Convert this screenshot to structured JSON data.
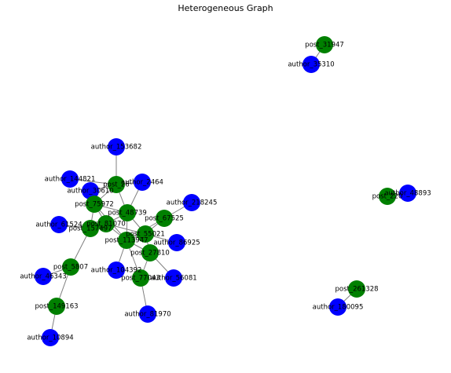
{
  "title": "Heterogeneous Graph",
  "colors": {
    "post": "#008000",
    "author": "#0000ff",
    "edge": "#808080",
    "label": "#000000"
  },
  "nodes": [
    {
      "id": "p31947",
      "label": "post_31947",
      "type": "post"
    },
    {
      "id": "a35310",
      "label": "author_35310",
      "type": "author"
    },
    {
      "id": "p220",
      "label": "post_220",
      "type": "post"
    },
    {
      "id": "a48893",
      "label": "author_48893",
      "type": "author"
    },
    {
      "id": "p261328",
      "label": "post_261328",
      "type": "post"
    },
    {
      "id": "a180095",
      "label": "author_180095",
      "type": "author"
    },
    {
      "id": "a153682",
      "label": "author_153682",
      "type": "author"
    },
    {
      "id": "p26",
      "label": "post_26",
      "type": "post"
    },
    {
      "id": "a144821",
      "label": "author_144821",
      "type": "author"
    },
    {
      "id": "a2464",
      "label": "author_2464",
      "type": "author"
    },
    {
      "id": "a30610",
      "label": "author_30610",
      "type": "author"
    },
    {
      "id": "p75972",
      "label": "post_75972",
      "type": "post"
    },
    {
      "id": "p48739",
      "label": "post_48739",
      "type": "post"
    },
    {
      "id": "a218245",
      "label": "author_218245",
      "type": "author"
    },
    {
      "id": "p67525",
      "label": "post_67525",
      "type": "post"
    },
    {
      "id": "a61524",
      "label": "author_61524",
      "type": "author"
    },
    {
      "id": "p157497",
      "label": "post_157497",
      "type": "post"
    },
    {
      "id": "p81070",
      "label": "post_81070",
      "type": "post"
    },
    {
      "id": "p55021",
      "label": "post_55021",
      "type": "post"
    },
    {
      "id": "p113947",
      "label": "post_113947",
      "type": "post"
    },
    {
      "id": "a86925",
      "label": "author_86925",
      "type": "author"
    },
    {
      "id": "p27810",
      "label": "post_27810",
      "type": "post"
    },
    {
      "id": "p5807",
      "label": "post_5807",
      "type": "post"
    },
    {
      "id": "a104392",
      "label": "author_104392",
      "type": "author"
    },
    {
      "id": "a46343",
      "label": "author_46343",
      "type": "author"
    },
    {
      "id": "p77043",
      "label": "post_77043",
      "type": "post"
    },
    {
      "id": "a56081",
      "label": "author_56081",
      "type": "author"
    },
    {
      "id": "p149163",
      "label": "post_149163",
      "type": "post"
    },
    {
      "id": "a81970",
      "label": "author_81970",
      "type": "author"
    },
    {
      "id": "a10894",
      "label": "author_10894",
      "type": "author"
    }
  ],
  "edges": [
    [
      "p31947",
      "a35310"
    ],
    [
      "p220",
      "a48893"
    ],
    [
      "p261328",
      "a180095"
    ],
    [
      "a153682",
      "p26"
    ],
    [
      "p26",
      "a144821"
    ],
    [
      "p26",
      "a2464"
    ],
    [
      "p26",
      "a30610"
    ],
    [
      "p26",
      "p75972"
    ],
    [
      "p26",
      "p48739"
    ],
    [
      "a30610",
      "p75972"
    ],
    [
      "p75972",
      "p48739"
    ],
    [
      "p75972",
      "p157497"
    ],
    [
      "p75972",
      "p81070"
    ],
    [
      "p75972",
      "p113947"
    ],
    [
      "a2464",
      "p48739"
    ],
    [
      "p48739",
      "p81070"
    ],
    [
      "p48739",
      "p113947"
    ],
    [
      "p48739",
      "p55021"
    ],
    [
      "a218245",
      "p67525"
    ],
    [
      "p67525",
      "p113947"
    ],
    [
      "p67525",
      "p55021"
    ],
    [
      "a61524",
      "p157497"
    ],
    [
      "p157497",
      "p81070"
    ],
    [
      "p157497",
      "p5807"
    ],
    [
      "p81070",
      "p113947"
    ],
    [
      "p81070",
      "p55021"
    ],
    [
      "p113947",
      "p55021"
    ],
    [
      "p113947",
      "a104392"
    ],
    [
      "p113947",
      "p77043"
    ],
    [
      "p113947",
      "p27810"
    ],
    [
      "p55021",
      "a86925"
    ],
    [
      "p55021",
      "p27810"
    ],
    [
      "p27810",
      "p77043"
    ],
    [
      "p27810",
      "a56081"
    ],
    [
      "p77043",
      "a81970"
    ],
    [
      "p5807",
      "a46343"
    ],
    [
      "p5807",
      "p149163"
    ],
    [
      "p149163",
      "a10894"
    ]
  ]
}
